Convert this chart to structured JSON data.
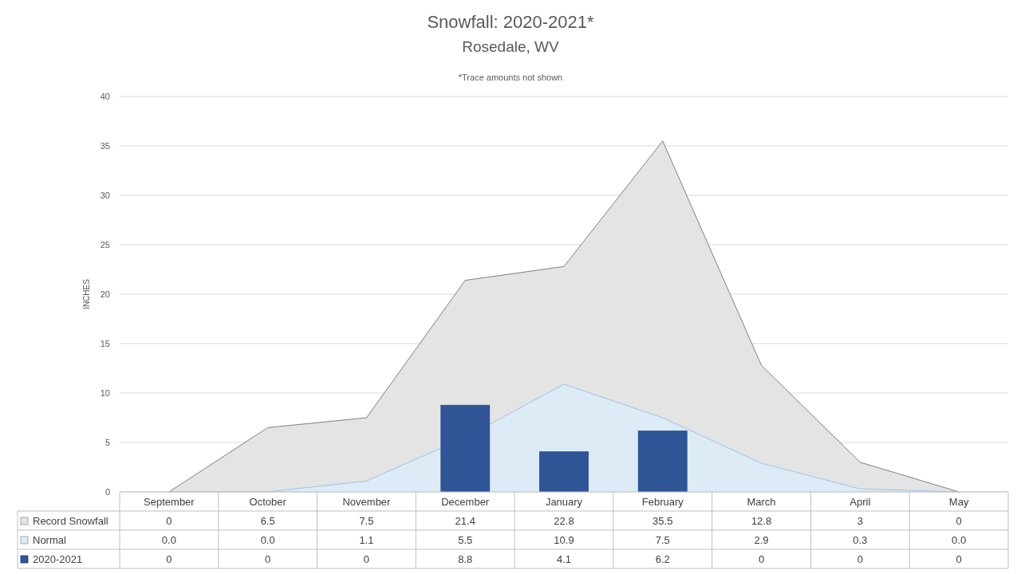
{
  "chart_data": {
    "type": "area",
    "title": "Snowfall: 2020-2021*",
    "subtitle": "Rosedale, WV",
    "annotations": [
      "*Trace amounts not shown"
    ],
    "ylabel": "INCHES",
    "categories": [
      "September",
      "October",
      "November",
      "December",
      "January",
      "February",
      "March",
      "April",
      "May"
    ],
    "series": [
      {
        "name": "Record Snowfall",
        "color": "#e4e4e4",
        "values": [
          0,
          6.5,
          7.5,
          21.4,
          22.8,
          35.5,
          12.8,
          3,
          0
        ]
      },
      {
        "name": "Normal",
        "color": "#ddebf7",
        "values": [
          0.0,
          0.0,
          1.1,
          5.5,
          10.9,
          7.5,
          2.9,
          0.3,
          0.0
        ],
        "value_labels": [
          "0.0",
          "0.0",
          "1.1",
          "5.5",
          "10.9",
          "7.5",
          "2.9",
          "0.3",
          "0.0"
        ]
      },
      {
        "name": "2020-2021",
        "type": "bar",
        "color": "#2f5597",
        "values": [
          0,
          0,
          0,
          8.8,
          4.1,
          6.2,
          0,
          0,
          0
        ]
      }
    ],
    "ylim": [
      0,
      40
    ],
    "yticks": [
      0,
      5,
      10,
      15,
      20,
      25,
      30,
      35,
      40
    ],
    "grid": "y",
    "data_labels": true,
    "legend": "bottom"
  }
}
